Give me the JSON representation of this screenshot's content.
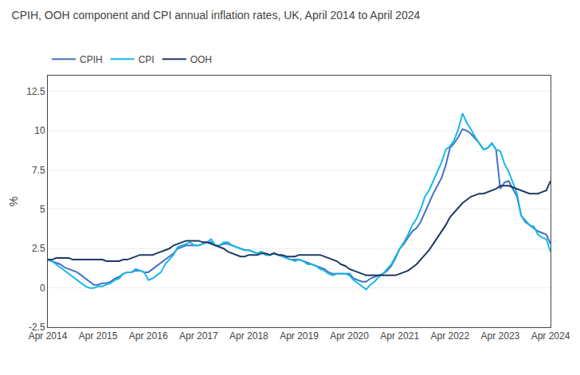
{
  "chart_data": {
    "type": "line",
    "title": "CPIH, OOH component and CPI annual inflation rates, UK, April 2014 to April 2024",
    "ylabel": "%",
    "categories": [
      "Apr 2014",
      null,
      null,
      null,
      null,
      null,
      null,
      null,
      null,
      null,
      null,
      null,
      "Apr 2015",
      null,
      null,
      null,
      null,
      null,
      null,
      null,
      null,
      null,
      null,
      null,
      "Apr 2016",
      null,
      null,
      null,
      null,
      null,
      null,
      null,
      null,
      null,
      null,
      null,
      "Apr 2017",
      null,
      null,
      null,
      null,
      null,
      null,
      null,
      null,
      null,
      null,
      null,
      "Apr 2018",
      null,
      null,
      null,
      null,
      null,
      null,
      null,
      null,
      null,
      null,
      null,
      "Apr 2019",
      null,
      null,
      null,
      null,
      null,
      null,
      null,
      null,
      null,
      null,
      null,
      "Apr 2020",
      null,
      null,
      null,
      null,
      null,
      null,
      null,
      null,
      null,
      null,
      null,
      "Apr 2021",
      null,
      null,
      null,
      null,
      null,
      null,
      null,
      null,
      null,
      null,
      null,
      "Apr 2022",
      null,
      null,
      null,
      null,
      null,
      null,
      null,
      null,
      null,
      null,
      null,
      "Apr 2023",
      null,
      null,
      null,
      null,
      null,
      null,
      null,
      null,
      null,
      null,
      null,
      "Apr 2024"
    ],
    "series": [
      {
        "name": "CPIH",
        "color": "#4472c4",
        "values": [
          1.8,
          1.7,
          1.6,
          1.5,
          1.3,
          1.2,
          1.1,
          1.0,
          0.8,
          0.6,
          0.4,
          0.2,
          0.2,
          0.3,
          0.3,
          0.4,
          0.6,
          0.7,
          0.9,
          1.0,
          1.0,
          1.1,
          1.1,
          1.0,
          1.0,
          1.2,
          1.4,
          1.6,
          1.8,
          2.0,
          2.2,
          2.5,
          2.6,
          2.7,
          2.7,
          2.7,
          2.7,
          2.8,
          2.9,
          2.9,
          2.7,
          2.7,
          2.8,
          2.8,
          2.7,
          2.6,
          2.5,
          2.4,
          2.4,
          2.3,
          2.2,
          2.3,
          2.1,
          2.1,
          2.2,
          2.1,
          2.0,
          1.9,
          1.8,
          1.8,
          1.8,
          1.7,
          1.6,
          1.5,
          1.4,
          1.3,
          1.2,
          1.0,
          0.9,
          0.9,
          0.9,
          0.9,
          0.9,
          0.6,
          0.5,
          0.4,
          0.4,
          0.6,
          0.7,
          0.8,
          0.9,
          1.1,
          1.4,
          1.9,
          2.5,
          2.8,
          3.2,
          3.6,
          3.8,
          4.2,
          4.8,
          5.4,
          6.0,
          6.5,
          7.0,
          7.8,
          8.9,
          9.2,
          9.6,
          10.1,
          10.0,
          9.8,
          9.5,
          9.2,
          8.8,
          8.9,
          9.2,
          8.8,
          6.3,
          6.7,
          6.8,
          6.3,
          5.8,
          4.6,
          4.2,
          4.0,
          3.8,
          3.6,
          3.5,
          3.4,
          2.8
        ]
      },
      {
        "name": "CPI",
        "color": "#17b9e8",
        "values": [
          1.8,
          1.7,
          1.5,
          1.3,
          1.1,
          0.9,
          0.7,
          0.5,
          0.3,
          0.1,
          0.0,
          0.0,
          0.1,
          0.1,
          0.2,
          0.3,
          0.5,
          0.6,
          0.9,
          1.0,
          1.0,
          1.2,
          1.1,
          1.0,
          0.5,
          0.6,
          0.8,
          1.0,
          1.5,
          1.8,
          2.1,
          2.6,
          2.7,
          2.8,
          2.9,
          2.7,
          2.7,
          2.8,
          2.9,
          3.1,
          2.7,
          2.7,
          2.9,
          2.9,
          2.7,
          2.6,
          2.5,
          2.4,
          2.4,
          2.3,
          2.2,
          2.3,
          2.1,
          2.1,
          2.2,
          2.1,
          2.0,
          1.9,
          1.8,
          1.7,
          1.8,
          1.7,
          1.5,
          1.5,
          1.4,
          1.2,
          1.1,
          0.9,
          0.8,
          0.9,
          0.9,
          0.9,
          0.8,
          0.5,
          0.3,
          0.1,
          -0.1,
          0.2,
          0.4,
          0.7,
          0.9,
          1.2,
          1.5,
          2.0,
          2.5,
          2.9,
          3.4,
          4.0,
          4.4,
          5.0,
          5.8,
          6.2,
          6.8,
          7.4,
          8.0,
          8.8,
          9.0,
          9.4,
          10.1,
          11.1,
          10.5,
          10.1,
          9.6,
          9.2,
          8.8,
          8.9,
          9.2,
          8.8,
          8.7,
          7.9,
          7.4,
          6.7,
          6.0,
          4.6,
          4.3,
          4.0,
          3.9,
          3.4,
          3.2,
          3.1,
          2.3
        ]
      },
      {
        "name": "OOH",
        "color": "#1f3864",
        "values": [
          1.8,
          1.8,
          1.9,
          1.9,
          1.9,
          1.9,
          1.8,
          1.8,
          1.8,
          1.8,
          1.8,
          1.8,
          1.8,
          1.8,
          1.7,
          1.7,
          1.7,
          1.7,
          1.8,
          1.8,
          1.9,
          2.0,
          2.1,
          2.1,
          2.1,
          2.1,
          2.2,
          2.3,
          2.4,
          2.5,
          2.7,
          2.8,
          2.9,
          3.0,
          3.0,
          3.0,
          3.0,
          2.9,
          2.9,
          2.8,
          2.7,
          2.6,
          2.5,
          2.3,
          2.2,
          2.1,
          2.0,
          2.0,
          2.1,
          2.1,
          2.1,
          2.2,
          2.2,
          2.1,
          2.2,
          2.1,
          2.1,
          2.0,
          2.0,
          2.0,
          2.1,
          2.1,
          2.1,
          2.1,
          2.1,
          2.1,
          2.0,
          1.9,
          1.8,
          1.7,
          1.5,
          1.4,
          1.2,
          1.1,
          1.0,
          0.9,
          0.8,
          0.8,
          0.8,
          0.8,
          0.8,
          0.8,
          0.8,
          0.8,
          0.9,
          1.0,
          1.1,
          1.3,
          1.5,
          1.8,
          2.1,
          2.4,
          2.8,
          3.2,
          3.6,
          4.0,
          4.5,
          4.8,
          5.1,
          5.4,
          5.6,
          5.8,
          5.9,
          6.0,
          6.0,
          6.1,
          6.2,
          6.3,
          6.5,
          6.5,
          6.5,
          6.4,
          6.3,
          6.2,
          6.1,
          6.0,
          6.0,
          6.0,
          6.1,
          6.2,
          6.8
        ]
      }
    ],
    "ylim": [
      -2.5,
      13.5
    ],
    "yticks": [
      -2.5,
      0,
      2.5,
      5,
      7.5,
      10,
      12.5
    ],
    "grid": true,
    "legend": "upper left"
  }
}
